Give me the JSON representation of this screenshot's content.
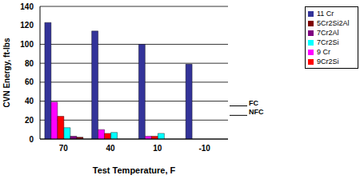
{
  "chart_data": {
    "type": "bar",
    "x_label": "Test Temperature, F",
    "y_label": "CVN Energy, ft-lbs",
    "categories": [
      "70",
      "40",
      "10",
      "-10"
    ],
    "series": [
      {
        "name": "11 Cr",
        "color": "#333399",
        "values": [
          123,
          114,
          100,
          79
        ]
      },
      {
        "name": "9 Cr",
        "color": "#FF00FF",
        "values": [
          39,
          10,
          3,
          null
        ]
      },
      {
        "name": "9Cr2Si",
        "color": "#FF0000",
        "values": [
          24,
          6,
          3,
          null
        ]
      },
      {
        "name": "7Cr2Si",
        "color": "#00FFFF",
        "values": [
          12,
          7,
          6,
          null
        ]
      },
      {
        "name": "7Cr2Al",
        "color": "#800080",
        "values": [
          3,
          null,
          null,
          null
        ]
      },
      {
        "name": "5Cr2Si2Al",
        "color": "#800000",
        "values": [
          2,
          null,
          null,
          null
        ]
      }
    ],
    "annotations": [
      {
        "text": "FC",
        "y": 35
      },
      {
        "text": "NFC",
        "y": 25
      }
    ],
    "ylim": [
      0,
      140
    ],
    "yticks": [
      0,
      20,
      40,
      60,
      80,
      100,
      120,
      140
    ],
    "grid": true,
    "legend": "right"
  }
}
